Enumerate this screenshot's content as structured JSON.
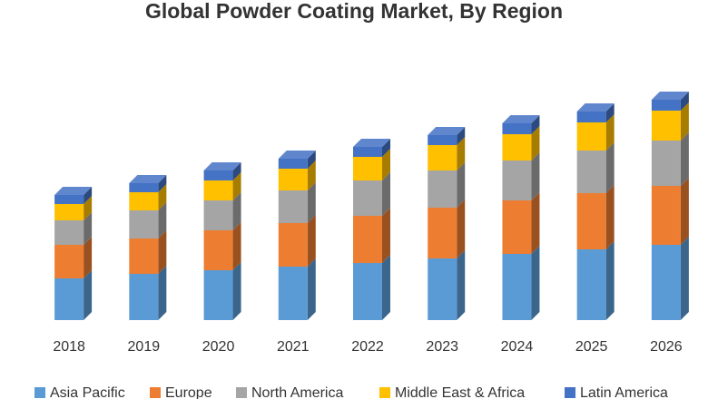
{
  "chart_data": {
    "type": "stacked-bar-3d",
    "title": "Global Powder Coating Market, By Region",
    "categories": [
      "2018",
      "2019",
      "2020",
      "2021",
      "2022",
      "2023",
      "2024",
      "2025",
      "2026"
    ],
    "series": [
      {
        "name": "Asia Pacific",
        "color": "#5b9bd5",
        "values": [
          46,
          51,
          55,
          59,
          63,
          68,
          73,
          78,
          83
        ]
      },
      {
        "name": "Europe",
        "color": "#ed7d31",
        "values": [
          37,
          39,
          44,
          48,
          52,
          56,
          59,
          62,
          65
        ]
      },
      {
        "name": "North America",
        "color": "#a5a5a5",
        "values": [
          27,
          31,
          33,
          36,
          39,
          41,
          44,
          47,
          50
        ]
      },
      {
        "name": "Middle East & Africa",
        "color": "#ffc000",
        "values": [
          18,
          20,
          22,
          24,
          26,
          28,
          29,
          31,
          33
        ]
      },
      {
        "name": "Latin America",
        "color": "#4472c4",
        "values": [
          10,
          10,
          11,
          11,
          11,
          11,
          12,
          12,
          12
        ]
      }
    ],
    "legend": "bottom"
  }
}
